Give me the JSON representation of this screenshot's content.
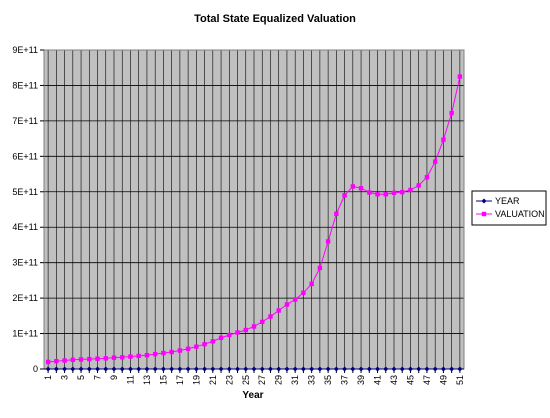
{
  "chart_data": {
    "type": "line",
    "title": "Total State Equalized Valuation",
    "xlabel": "Year",
    "ylabel": "",
    "x": [
      1,
      2,
      3,
      4,
      5,
      6,
      7,
      8,
      9,
      10,
      11,
      12,
      13,
      14,
      15,
      16,
      17,
      18,
      19,
      20,
      21,
      22,
      23,
      24,
      25,
      26,
      27,
      28,
      29,
      30,
      31,
      32,
      33,
      34,
      35,
      36,
      37,
      38,
      39,
      40,
      41,
      42,
      43,
      44,
      45,
      46,
      47,
      48,
      49,
      50,
      51
    ],
    "x_tick_labels": [
      "1",
      "3",
      "5",
      "7",
      "9",
      "11",
      "13",
      "15",
      "17",
      "19",
      "21",
      "23",
      "25",
      "27",
      "29",
      "31",
      "33",
      "35",
      "37",
      "39",
      "41",
      "43",
      "45",
      "47",
      "49",
      "51"
    ],
    "ylim": [
      0,
      900000000000
    ],
    "y_tick_labels": [
      "0",
      "1E+11",
      "2E+11",
      "3E+11",
      "4E+11",
      "5E+11",
      "6E+11",
      "7E+11",
      "8E+11",
      "9E+11"
    ],
    "grid": "on",
    "legend_position": "right",
    "colors": {
      "plot_background": "#c0c0c0",
      "grid": "#000000",
      "year_series": "#000080",
      "valuation_series": "#ff00ff"
    },
    "series": [
      {
        "name": "YEAR",
        "marker": "diamond",
        "values": [
          1,
          2,
          3,
          4,
          5,
          6,
          7,
          8,
          9,
          10,
          11,
          12,
          13,
          14,
          15,
          16,
          17,
          18,
          19,
          20,
          21,
          22,
          23,
          24,
          25,
          26,
          27,
          28,
          29,
          30,
          31,
          32,
          33,
          34,
          35,
          36,
          37,
          38,
          39,
          40,
          41,
          42,
          43,
          44,
          45,
          46,
          47,
          48,
          49,
          50,
          51
        ]
      },
      {
        "name": "VALUATION",
        "marker": "square",
        "values": [
          20000000000,
          22000000000,
          24000000000,
          26000000000,
          27000000000,
          28000000000,
          29000000000,
          30000000000,
          32000000000,
          33000000000,
          35000000000,
          37000000000,
          39000000000,
          42000000000,
          45000000000,
          48000000000,
          52000000000,
          57000000000,
          63000000000,
          70000000000,
          78000000000,
          88000000000,
          96000000000,
          103000000000,
          110000000000,
          120000000000,
          133000000000,
          148000000000,
          165000000000,
          182000000000,
          196000000000,
          215000000000,
          240000000000,
          285000000000,
          360000000000,
          438000000000,
          490000000000,
          515000000000,
          510000000000,
          498000000000,
          493000000000,
          493000000000,
          497000000000,
          499000000000,
          505000000000,
          518000000000,
          541000000000,
          585000000000,
          647000000000,
          722000000000,
          825000000000
        ]
      }
    ]
  }
}
